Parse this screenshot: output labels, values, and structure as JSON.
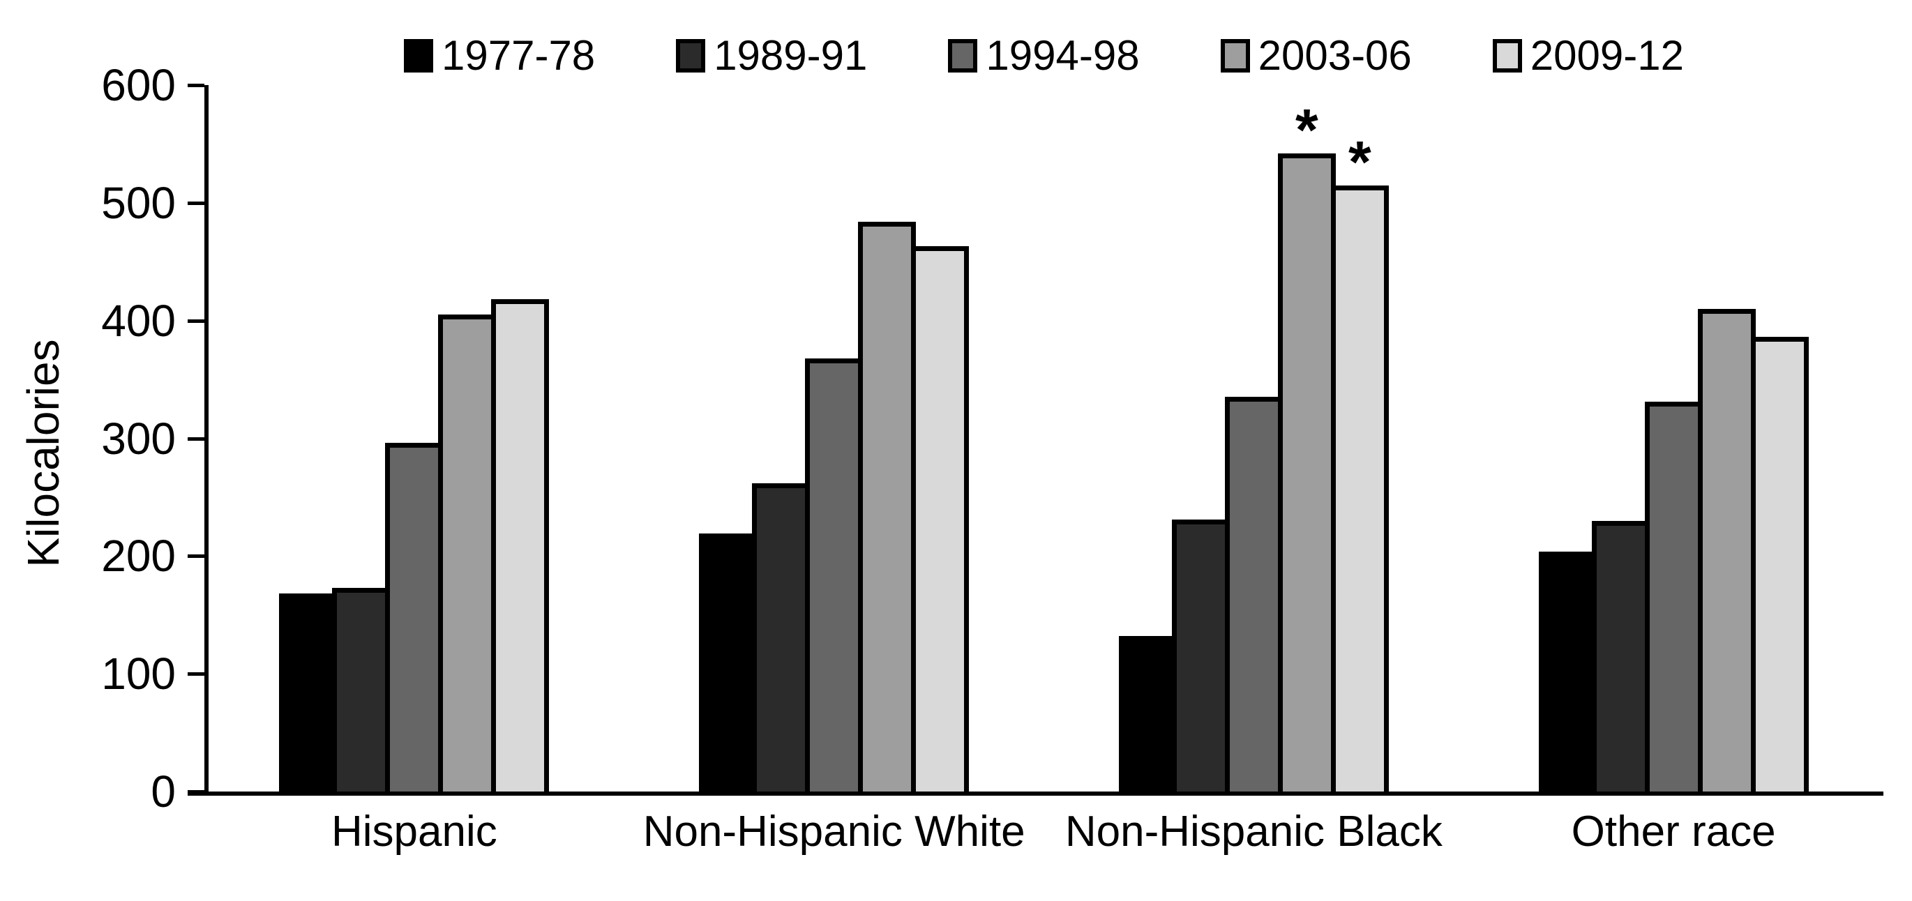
{
  "figure": {
    "y_axis_title": "Kilocalories"
  },
  "chart_data": {
    "type": "bar",
    "title": "",
    "xlabel": "",
    "ylabel": "Kilocalories",
    "ylim": [
      0,
      600
    ],
    "yticks": [
      0,
      100,
      200,
      300,
      400,
      500,
      600
    ],
    "grid": false,
    "legend_position": "top-center",
    "bar_outline_color": "#000000",
    "categories": [
      "Hispanic",
      "Non-Hispanic White",
      "Non-Hispanic Black",
      "Other race"
    ],
    "series": [
      {
        "name": "1977-78",
        "color": "#000000",
        "values": [
          168,
          219,
          132,
          204
        ]
      },
      {
        "name": "1989-91",
        "color": "#2b2b2b",
        "values": [
          173,
          262,
          231,
          230
        ]
      },
      {
        "name": "1994-98",
        "color": "#666666",
        "values": [
          296,
          368,
          335,
          331
        ]
      },
      {
        "name": "2003-06",
        "color": "#9e9e9e",
        "values": [
          405,
          484,
          542,
          410
        ]
      },
      {
        "name": "2009-12",
        "color": "#d9d9d9",
        "values": [
          418,
          463,
          515,
          386
        ]
      }
    ],
    "annotations": [
      {
        "category": "Non-Hispanic Black",
        "series": "2003-06",
        "text": "*"
      },
      {
        "category": "Non-Hispanic Black",
        "series": "2009-12",
        "text": "*"
      }
    ]
  }
}
